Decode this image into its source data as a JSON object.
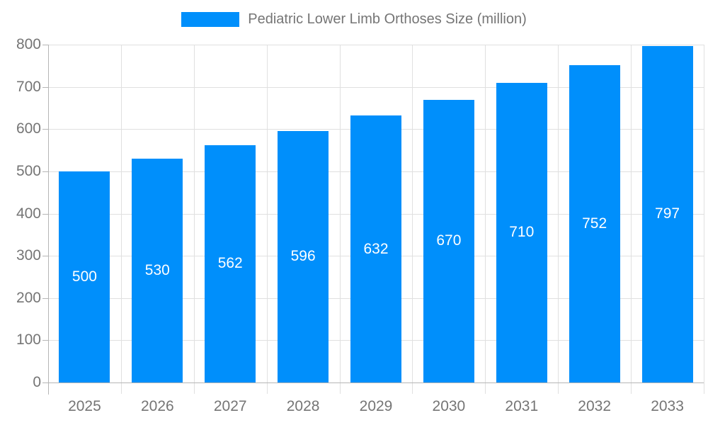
{
  "chart_data": {
    "type": "bar",
    "title": "Pediatric Lower Limb Orthoses Size (million)",
    "categories": [
      "2025",
      "2026",
      "2027",
      "2028",
      "2029",
      "2030",
      "2031",
      "2032",
      "2033"
    ],
    "values": [
      500,
      530,
      562,
      596,
      632,
      670,
      710,
      752,
      797
    ],
    "series": [
      {
        "name": "Pediatric Lower Limb Orthoses Size (million)",
        "values": [
          500,
          530,
          562,
          596,
          632,
          670,
          710,
          752,
          797
        ]
      }
    ],
    "xlabel": "",
    "ylabel": "",
    "ylim": [
      0,
      800
    ],
    "ytick_step": 100,
    "ytick_labels": [
      "0",
      "100",
      "200",
      "300",
      "400",
      "500",
      "600",
      "700",
      "800"
    ],
    "grid": true,
    "legend_position": "top",
    "value_labels_shown": true,
    "colors": {
      "bar": "#008FFB",
      "grid_line": "#e0e0e0",
      "axis_line": "#b6b6b6",
      "tick_label": "#757575",
      "legend_text": "#757575",
      "value_label": "#ffffff",
      "background": "#ffffff"
    }
  }
}
